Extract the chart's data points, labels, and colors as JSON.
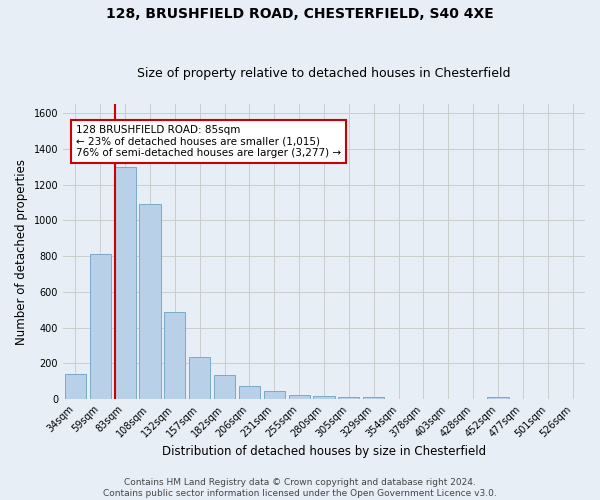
{
  "title": "128, BRUSHFIELD ROAD, CHESTERFIELD, S40 4XE",
  "subtitle": "Size of property relative to detached houses in Chesterfield",
  "xlabel": "Distribution of detached houses by size in Chesterfield",
  "ylabel": "Number of detached properties",
  "categories": [
    "34sqm",
    "59sqm",
    "83sqm",
    "108sqm",
    "132sqm",
    "157sqm",
    "182sqm",
    "206sqm",
    "231sqm",
    "255sqm",
    "280sqm",
    "305sqm",
    "329sqm",
    "354sqm",
    "378sqm",
    "403sqm",
    "428sqm",
    "452sqm",
    "477sqm",
    "501sqm",
    "526sqm"
  ],
  "values": [
    140,
    810,
    1300,
    1090,
    490,
    235,
    135,
    75,
    43,
    25,
    18,
    14,
    14,
    0,
    0,
    0,
    0,
    14,
    0,
    0,
    0
  ],
  "bar_color": "#b8d0e8",
  "bar_edge_color": "#7aaac8",
  "annotation_text": "128 BRUSHFIELD ROAD: 85sqm\n← 23% of detached houses are smaller (1,015)\n76% of semi-detached houses are larger (3,277) →",
  "annotation_box_color": "#ffffff",
  "annotation_box_edge_color": "#cc0000",
  "vline_color": "#cc0000",
  "ylim": [
    0,
    1650
  ],
  "yticks": [
    0,
    200,
    400,
    600,
    800,
    1000,
    1200,
    1400,
    1600
  ],
  "grid_color": "#cccccc",
  "bg_color": "#e8eef5",
  "footer_line1": "Contains HM Land Registry data © Crown copyright and database right 2024.",
  "footer_line2": "Contains public sector information licensed under the Open Government Licence v3.0.",
  "title_fontsize": 10,
  "subtitle_fontsize": 9,
  "xlabel_fontsize": 8.5,
  "ylabel_fontsize": 8.5,
  "tick_fontsize": 7,
  "annotation_fontsize": 7.5,
  "footer_fontsize": 6.5
}
